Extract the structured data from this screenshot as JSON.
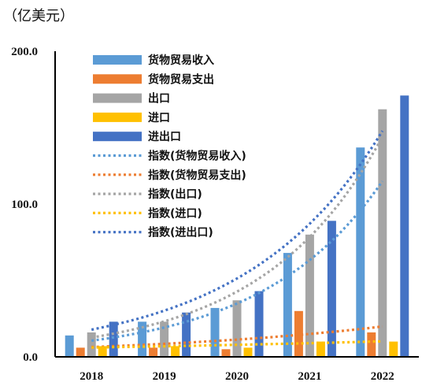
{
  "chart_data": {
    "type": "bar",
    "unit_label": "（亿美元）",
    "categories": [
      "2018",
      "2019",
      "2020",
      "2021",
      "2022"
    ],
    "ylim": [
      0,
      200
    ],
    "yticks": [
      "0.0",
      "100.0",
      "200.0"
    ],
    "ytick_values": [
      0,
      100,
      200
    ],
    "grid": false,
    "legend_position": "top-left",
    "series": [
      {
        "name": "货物贸易收入",
        "color": "#5B9BD5",
        "values": [
          14,
          23,
          32,
          68,
          137
        ]
      },
      {
        "name": "货物贸易支出",
        "color": "#ED7D31",
        "values": [
          6,
          6,
          5,
          30,
          16
        ]
      },
      {
        "name": "出口",
        "color": "#A5A5A5",
        "values": [
          16,
          23,
          37,
          80,
          162
        ]
      },
      {
        "name": "进口",
        "color": "#FFC000",
        "values": [
          7,
          7,
          6,
          10,
          10
        ]
      },
      {
        "name": "进出口",
        "color": "#4472C4",
        "values": [
          23,
          29,
          43,
          89,
          171
        ]
      }
    ],
    "trendlines": [
      {
        "name": "指数(货物贸易收入)",
        "color": "#5B9BD5",
        "values": [
          11,
          19,
          33,
          63,
          119
        ]
      },
      {
        "name": "指数(货物贸易支出)",
        "color": "#ED7D31",
        "values": [
          6,
          9,
          12,
          15,
          19
        ]
      },
      {
        "name": "指数(出口)",
        "color": "#A5A5A5",
        "values": [
          13,
          23,
          41,
          78,
          148
        ]
      },
      {
        "name": "指数(进口)",
        "color": "#FFC000",
        "values": [
          6,
          7,
          8,
          9,
          10
        ]
      },
      {
        "name": "指数(进出口)",
        "color": "#4472C4",
        "values": [
          18,
          30,
          51,
          86,
          150
        ]
      }
    ]
  }
}
